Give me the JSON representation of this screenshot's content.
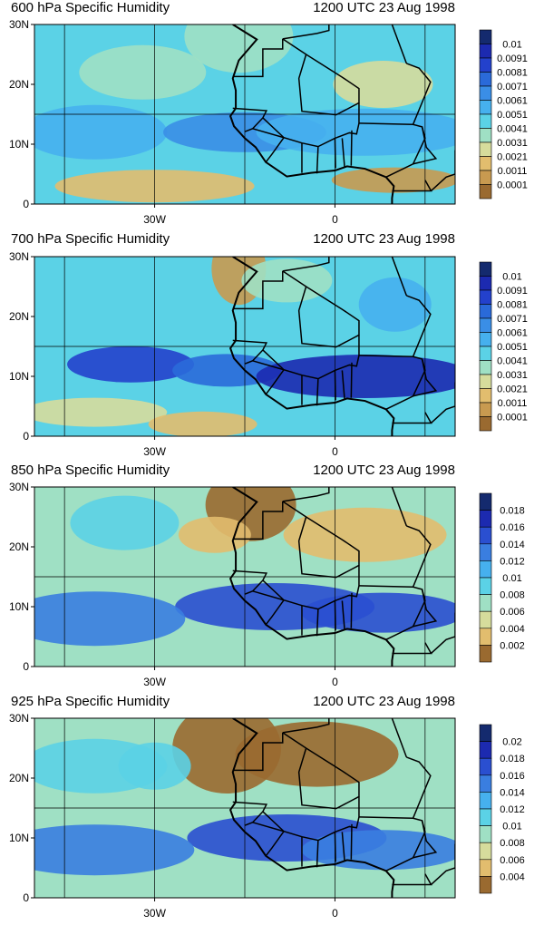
{
  "panels": [
    {
      "title": "600 hPa Specific Humidity",
      "datetime": "1200 UTC 23 Aug 1998",
      "y_ticks": [
        "30N",
        "20N",
        "10N",
        "0"
      ],
      "x_ticks": [
        "30W",
        "0"
      ],
      "colorbar_labels": [
        "0.01",
        "0.0091",
        "0.0081",
        "0.0071",
        "0.0061",
        "0.0051",
        "0.0041",
        "0.0031",
        "0.0021",
        "0.0011",
        "0.0001"
      ],
      "colors": [
        "#142a6e",
        "#1c2ab0",
        "#2341cc",
        "#2a6ad9",
        "#3a8ee6",
        "#46b0ee",
        "#5bd2e6",
        "#9fe0c4",
        "#d6dc9c",
        "#e2bd6e",
        "#c89a50",
        "#9a6a30"
      ]
    },
    {
      "title": "700 hPa Specific Humidity",
      "datetime": "1200 UTC 23 Aug 1998",
      "y_ticks": [
        "30N",
        "20N",
        "10N",
        "0"
      ],
      "x_ticks": [
        "30W",
        "0"
      ],
      "colorbar_labels": [
        "0.01",
        "0.0091",
        "0.0081",
        "0.0071",
        "0.0061",
        "0.0051",
        "0.0041",
        "0.0031",
        "0.0021",
        "0.0011",
        "0.0001"
      ],
      "colors": [
        "#142a6e",
        "#1c2ab0",
        "#2341cc",
        "#2a6ad9",
        "#3a8ee6",
        "#46b0ee",
        "#5bd2e6",
        "#9fe0c4",
        "#d6dc9c",
        "#e2bd6e",
        "#c89a50",
        "#9a6a30"
      ]
    },
    {
      "title": "850 hPa Specific Humidity",
      "datetime": "1200 UTC 23 Aug 1998",
      "y_ticks": [
        "30N",
        "20N",
        "10N",
        "0"
      ],
      "x_ticks": [
        "30W",
        "0"
      ],
      "colorbar_labels": [
        "0.018",
        "0.016",
        "0.014",
        "0.012",
        "0.01",
        "0.008",
        "0.006",
        "0.004",
        "0.002"
      ],
      "colors": [
        "#142a6e",
        "#1c2ab0",
        "#2a4fd0",
        "#3a7ee0",
        "#46b0ee",
        "#5bd2e6",
        "#9fe0c4",
        "#d6dc9c",
        "#e2bd6e",
        "#9a6a30"
      ]
    },
    {
      "title": "925 hPa Specific Humidity",
      "datetime": "1200 UTC 23 Aug 1998",
      "y_ticks": [
        "30N",
        "20N",
        "10N",
        "0"
      ],
      "x_ticks": [
        "30W",
        "0"
      ],
      "colorbar_labels": [
        "0.02",
        "0.018",
        "0.016",
        "0.014",
        "0.012",
        "0.01",
        "0.008",
        "0.006",
        "0.004"
      ],
      "colors": [
        "#142a6e",
        "#1c2ab0",
        "#2a4fd0",
        "#3a7ee0",
        "#46b0ee",
        "#5bd2e6",
        "#9fe0c4",
        "#d6dc9c",
        "#e2bd6e",
        "#9a6a30"
      ]
    }
  ]
}
